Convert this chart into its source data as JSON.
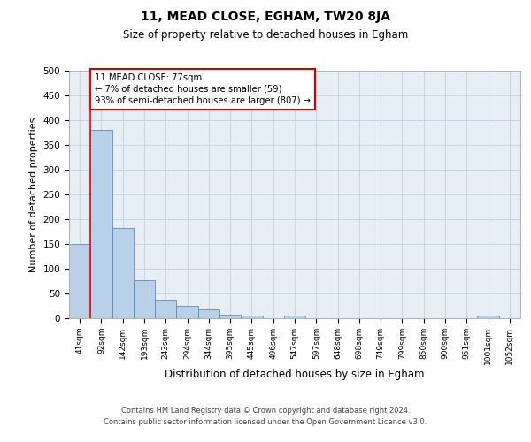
{
  "title1": "11, MEAD CLOSE, EGHAM, TW20 8JA",
  "title2": "Size of property relative to detached houses in Egham",
  "xlabel": "Distribution of detached houses by size in Egham",
  "ylabel": "Number of detached properties",
  "categories": [
    "41sqm",
    "92sqm",
    "142sqm",
    "193sqm",
    "243sqm",
    "294sqm",
    "344sqm",
    "395sqm",
    "445sqm",
    "496sqm",
    "547sqm",
    "597sqm",
    "648sqm",
    "698sqm",
    "749sqm",
    "799sqm",
    "850sqm",
    "900sqm",
    "951sqm",
    "1001sqm",
    "1052sqm"
  ],
  "values": [
    150,
    380,
    182,
    76,
    37,
    25,
    18,
    8,
    5,
    0,
    6,
    0,
    0,
    0,
    0,
    0,
    0,
    0,
    0,
    6,
    0
  ],
  "bar_color": "#b8d0e8",
  "bar_edge_color": "#5b8db8",
  "background_color": "#e8eef6",
  "ylim": [
    0,
    500
  ],
  "yticks": [
    0,
    50,
    100,
    150,
    200,
    250,
    300,
    350,
    400,
    450,
    500
  ],
  "annotation_text": "11 MEAD CLOSE: 77sqm\n← 7% of detached houses are smaller (59)\n93% of semi-detached houses are larger (807) →",
  "annotation_box_color": "#ffffff",
  "annotation_box_edge": "#cc0000",
  "footer": "Contains HM Land Registry data © Crown copyright and database right 2024.\nContains public sector information licensed under the Open Government Licence v3.0."
}
